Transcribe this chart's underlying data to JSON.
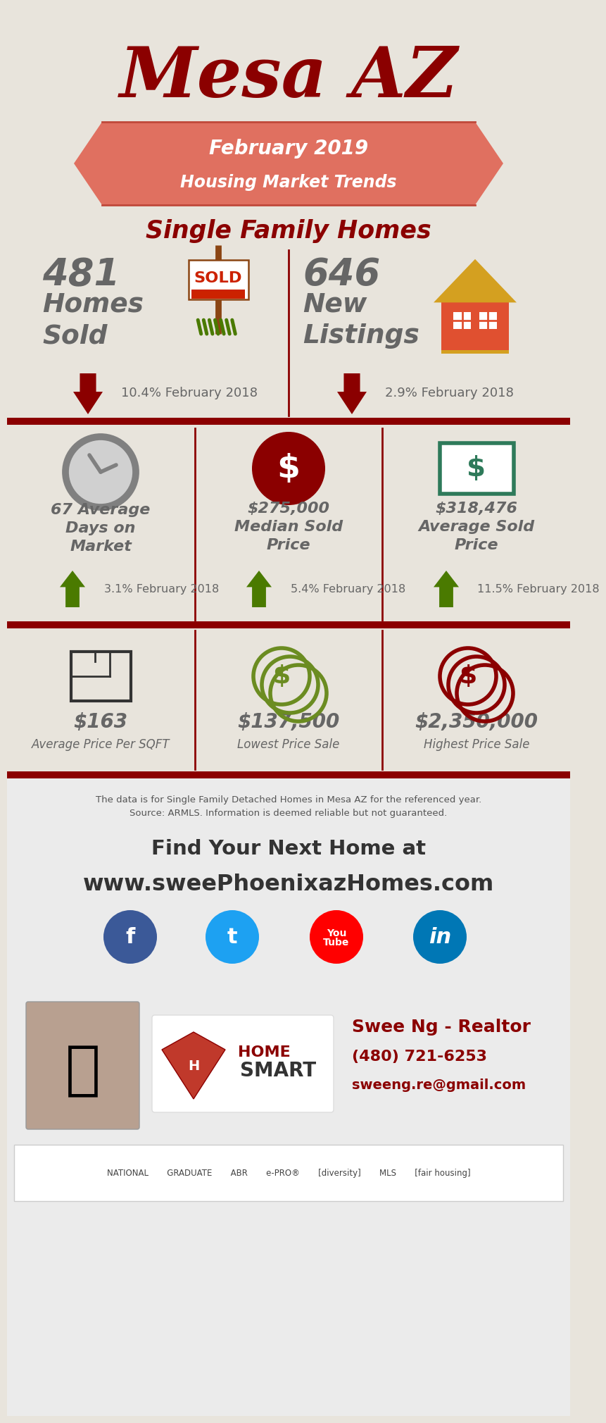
{
  "bg_color": "#e8e4dc",
  "title": "Mesa AZ",
  "title_color": "#8b0000",
  "banner_text1": "February 2019",
  "banner_text2": "Housing Market Trends",
  "banner_color": "#e07060",
  "banner_border_color": "#c0483a",
  "subtitle": "Single Family Homes",
  "subtitle_color": "#8b0000",
  "s1_left_val": "481",
  "s1_left_lbl": "Homes\nSold",
  "s1_left_chg": "10.4% February 2018",
  "s1_right_val": "646",
  "s1_right_lbl": "New\nListings",
  "s1_right_chg": "2.9% February 2018",
  "s2_c1_val": "67 Average\nDays on\nMarket",
  "s2_c1_chg": "3.1% February 2018",
  "s2_c2_val": "$275,000\nMedian Sold\nPrice",
  "s2_c2_chg": "5.4% February 2018",
  "s2_c3_val": "$318,476\nAverage Sold\nPrice",
  "s2_c3_chg": "11.5% February 2018",
  "s3_c1_val": "$163",
  "s3_c1_lbl": "Average Price Per SQFT",
  "s3_c2_val": "$137,500",
  "s3_c2_lbl": "Lowest Price Sale",
  "s3_c3_val": "$2,350,000",
  "s3_c3_lbl": "Highest Price Sale",
  "footer_text": "The data is for Single Family Detached Homes in Mesa AZ for the referenced year.\nSource: ARMLS. Information is deemed reliable but not guaranteed.",
  "cta_text1": "Find Your Next Home at",
  "cta_text2": "www.sweePhoenixazHomes.com",
  "contact_name": "Swee Ng - Realtor",
  "contact_phone": "(480) 721-6253",
  "contact_email": "sweeng.re@gmail.com",
  "divider_color": "#8b0000",
  "arrow_down_color": "#8b0000",
  "arrow_up_color": "#4a7a00",
  "text_color": "#666666",
  "clock_color": "#808080",
  "coin_color": "#8b0000",
  "money_border_color": "#2e7a5a",
  "floorplan_color": "#333333",
  "coin2_color": "#6b8c21",
  "coin3_color": "#8b0000",
  "fb_color": "#3b5998",
  "tw_color": "#1da1f2",
  "yt_color": "#ff0000",
  "li_color": "#0077b5"
}
